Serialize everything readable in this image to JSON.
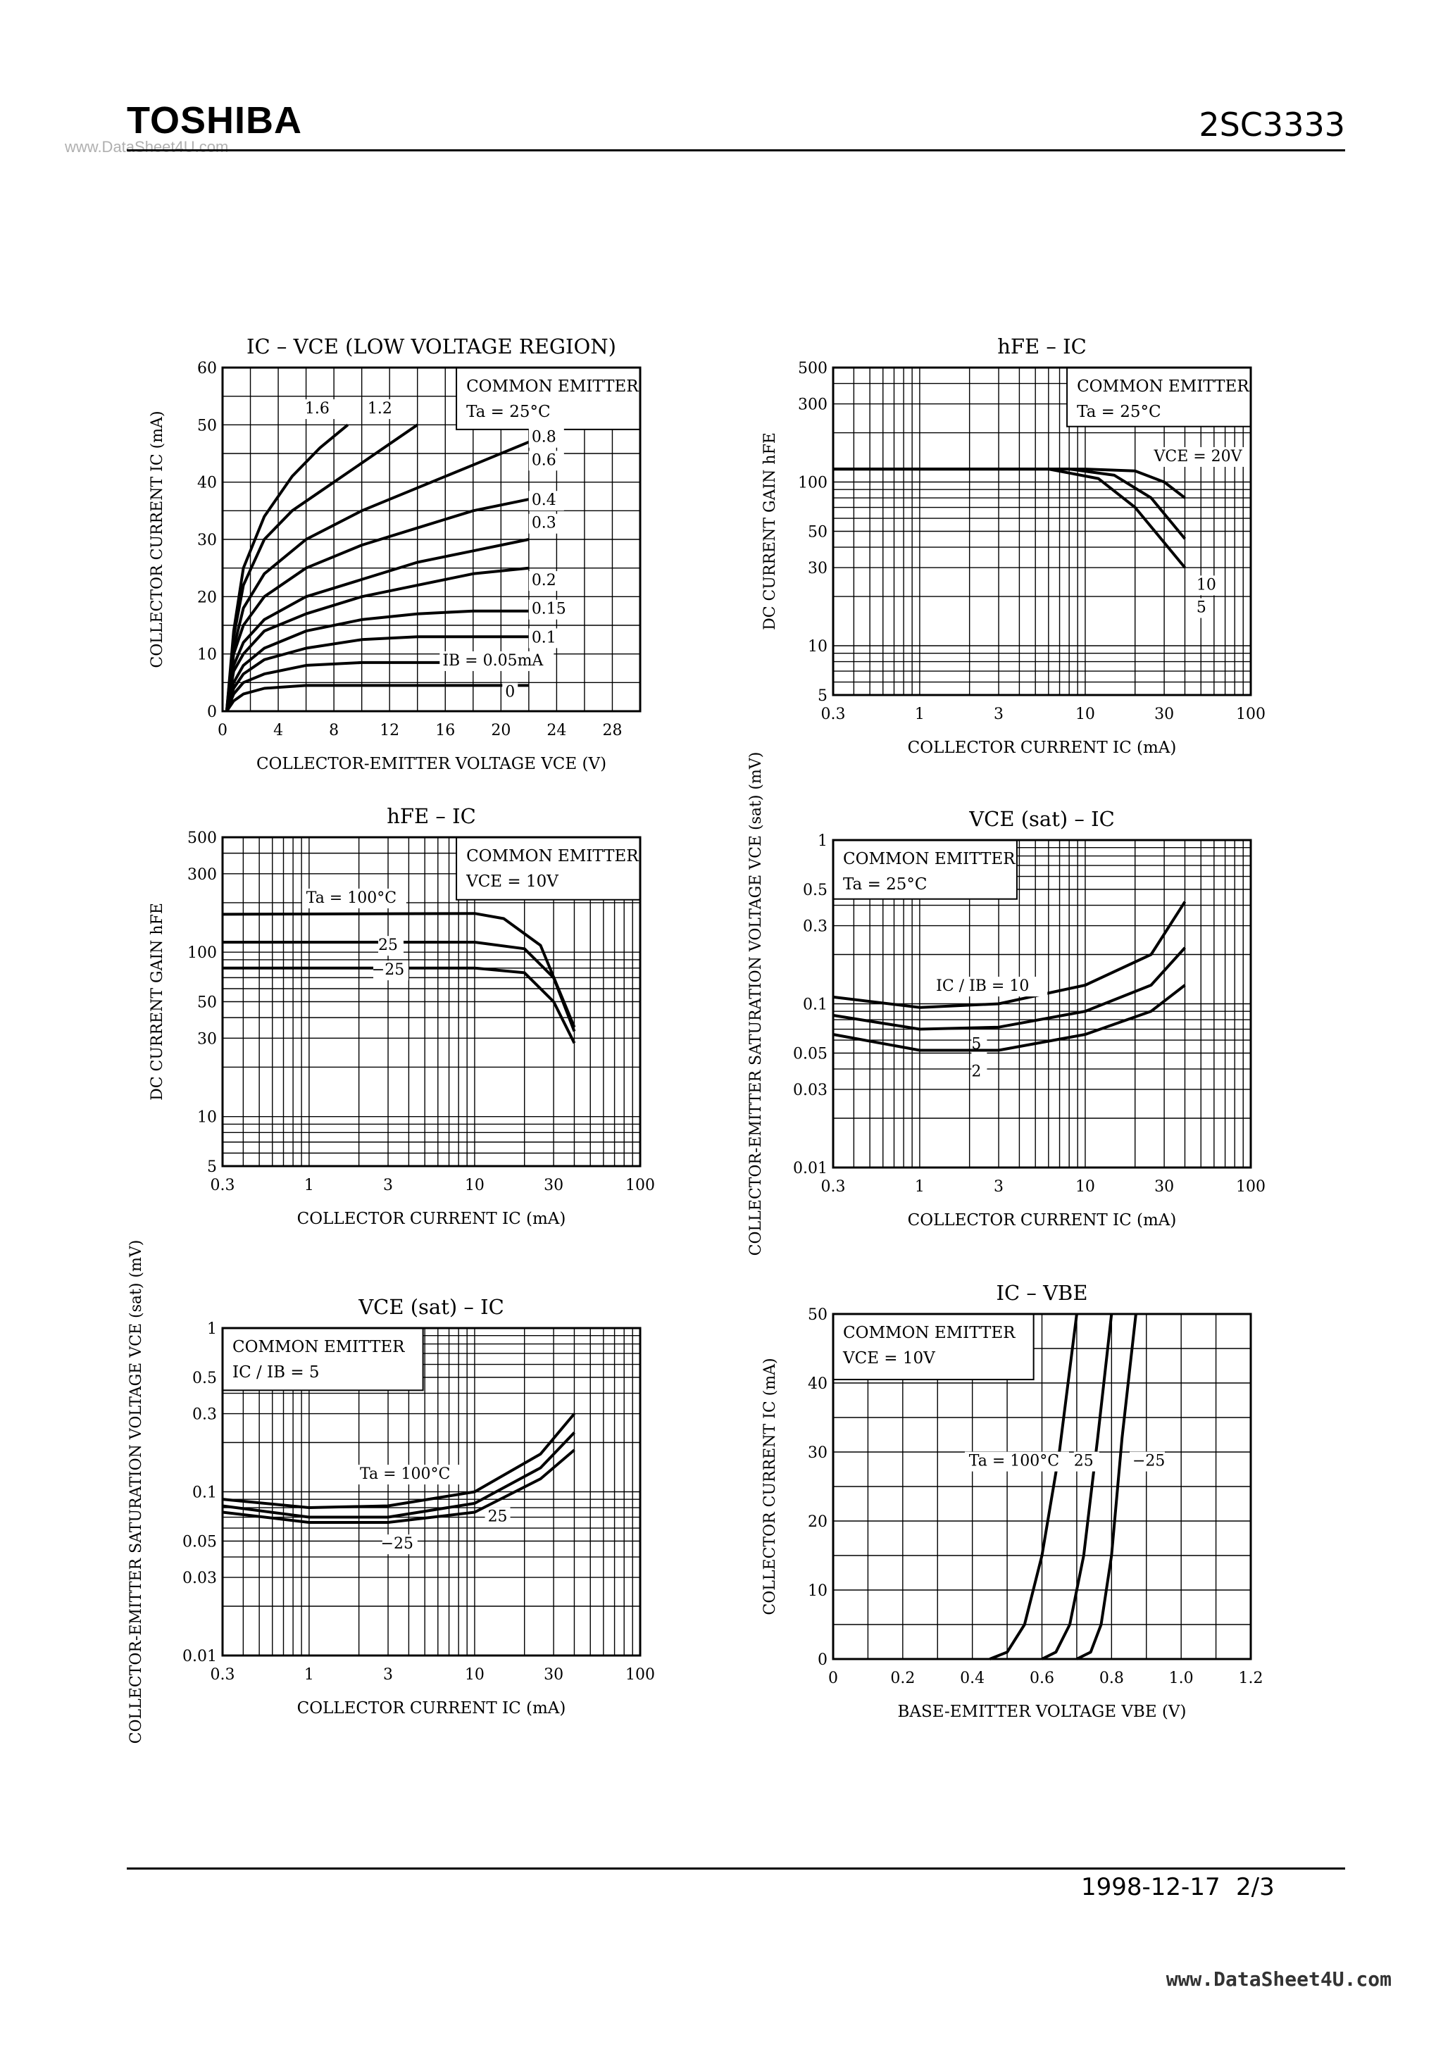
{
  "header": {
    "brand": "TOSHIBA",
    "part_number": "2SC3333",
    "watermark": "www.DataSheet4U.com"
  },
  "footer": {
    "date": "1998-12-17",
    "page": "2/3",
    "watermark": "www.DataSheet4U.com"
  },
  "chart_data": [
    {
      "type": "line",
      "title": "IC – VCE (LOW VOLTAGE REGION)",
      "xlabel": "COLLECTOR-EMITTER VOLTAGE VCE (V)",
      "ylabel": "COLLECTOR CURRENT IC (mA)",
      "xlim": [
        0,
        30
      ],
      "ylim": [
        0,
        60
      ],
      "xticks": [
        "0",
        "4",
        "8",
        "12",
        "16",
        "20",
        "24",
        "28"
      ],
      "yticks": [
        "0",
        "10",
        "20",
        "30",
        "40",
        "50",
        "60"
      ],
      "annotation": [
        "COMMON EMITTER",
        "Ta = 25°C"
      ],
      "series": [
        {
          "name": "1.6",
          "label": "1.6",
          "points": [
            [
              0.3,
              0
            ],
            [
              0.8,
              14
            ],
            [
              1.5,
              25
            ],
            [
              3,
              34
            ],
            [
              5,
              41
            ],
            [
              7,
              46
            ],
            [
              9,
              50
            ]
          ]
        },
        {
          "name": "1.2",
          "label": "1.2",
          "points": [
            [
              0.3,
              0
            ],
            [
              0.8,
              13
            ],
            [
              1.5,
              22
            ],
            [
              3,
              30
            ],
            [
              5,
              35
            ],
            [
              8,
              40
            ],
            [
              11,
              45
            ],
            [
              14,
              50
            ]
          ]
        },
        {
          "name": "0.8",
          "label": "0.8",
          "points": [
            [
              0.3,
              0
            ],
            [
              0.8,
              11
            ],
            [
              1.5,
              18
            ],
            [
              3,
              24
            ],
            [
              6,
              30
            ],
            [
              10,
              35
            ],
            [
              14,
              39
            ],
            [
              18,
              43
            ],
            [
              22,
              47
            ]
          ]
        },
        {
          "name": "0.6",
          "label": "0.6",
          "points": [
            [
              0.3,
              0
            ],
            [
              0.8,
              10
            ],
            [
              1.5,
              15
            ],
            [
              3,
              20
            ],
            [
              6,
              25
            ],
            [
              10,
              29
            ],
            [
              14,
              32
            ],
            [
              18,
              35
            ],
            [
              22,
              37
            ]
          ]
        },
        {
          "name": "0.4",
          "label": "0.4",
          "points": [
            [
              0.3,
              0
            ],
            [
              0.8,
              8
            ],
            [
              1.5,
              12
            ],
            [
              3,
              16
            ],
            [
              6,
              20
            ],
            [
              10,
              23
            ],
            [
              14,
              26
            ],
            [
              18,
              28
            ],
            [
              22,
              30
            ]
          ]
        },
        {
          "name": "0.3",
          "label": "0.3",
          "points": [
            [
              0.3,
              0
            ],
            [
              0.8,
              7
            ],
            [
              1.5,
              10
            ],
            [
              3,
              14
            ],
            [
              6,
              17
            ],
            [
              10,
              20
            ],
            [
              14,
              22
            ],
            [
              18,
              24
            ],
            [
              22,
              25
            ]
          ]
        },
        {
          "name": "0.2",
          "label": "0.2",
          "points": [
            [
              0.3,
              0
            ],
            [
              0.8,
              5
            ],
            [
              1.5,
              8
            ],
            [
              3,
              11
            ],
            [
              6,
              14
            ],
            [
              10,
              16
            ],
            [
              14,
              17
            ],
            [
              18,
              17.5
            ],
            [
              22,
              17.5
            ]
          ]
        },
        {
          "name": "0.15",
          "label": "0.15",
          "points": [
            [
              0.3,
              0
            ],
            [
              0.8,
              4
            ],
            [
              1.5,
              6.5
            ],
            [
              3,
              9
            ],
            [
              6,
              11
            ],
            [
              10,
              12.5
            ],
            [
              14,
              13
            ],
            [
              22,
              13
            ]
          ]
        },
        {
          "name": "0.1",
          "label": "0.1",
          "points": [
            [
              0.3,
              0
            ],
            [
              0.8,
              3
            ],
            [
              1.5,
              5
            ],
            [
              3,
              6.5
            ],
            [
              6,
              8
            ],
            [
              10,
              8.5
            ],
            [
              22,
              8.5
            ]
          ]
        },
        {
          "name": "0.05",
          "label": "IB = 0.05mA",
          "points": [
            [
              0.3,
              0
            ],
            [
              0.8,
              1.8
            ],
            [
              1.5,
              3
            ],
            [
              3,
              4
            ],
            [
              6,
              4.5
            ],
            [
              22,
              4.5
            ]
          ]
        },
        {
          "name": "0",
          "label": "0",
          "points": []
        }
      ]
    },
    {
      "type": "line",
      "title": "hFE – IC",
      "xlabel": "COLLECTOR CURRENT IC (mA)",
      "ylabel": "DC CURRENT GAIN hFE",
      "xscale": "log",
      "yscale": "log",
      "xlim": [
        0.3,
        100
      ],
      "ylim": [
        5,
        500
      ],
      "xticks": [
        "0.3",
        "1",
        "3",
        "10",
        "30",
        "100"
      ],
      "yticks": [
        "5",
        "10",
        "30",
        "50",
        "100",
        "300",
        "500"
      ],
      "annotation": [
        "COMMON EMITTER",
        "Ta = 25°C"
      ],
      "series": [
        {
          "name": "VCE = 20V",
          "label": "VCE = 20V",
          "points": [
            [
              0.3,
              120
            ],
            [
              10,
              120
            ],
            [
              20,
              117
            ],
            [
              30,
              100
            ],
            [
              40,
              80
            ]
          ]
        },
        {
          "name": "10",
          "label": "10",
          "points": [
            [
              0.3,
              120
            ],
            [
              8,
              120
            ],
            [
              15,
              110
            ],
            [
              25,
              80
            ],
            [
              40,
              45
            ]
          ]
        },
        {
          "name": "5",
          "label": "5",
          "points": [
            [
              0.3,
              120
            ],
            [
              6,
              120
            ],
            [
              12,
              105
            ],
            [
              20,
              70
            ],
            [
              40,
              30
            ]
          ]
        }
      ]
    },
    {
      "type": "line",
      "title": "hFE – IC",
      "xlabel": "COLLECTOR CURRENT IC (mA)",
      "ylabel": "DC CURRENT GAIN hFE",
      "xscale": "log",
      "yscale": "log",
      "xlim": [
        0.3,
        100
      ],
      "ylim": [
        5,
        500
      ],
      "xticks": [
        "0.3",
        "1",
        "3",
        "10",
        "30",
        "100"
      ],
      "yticks": [
        "5",
        "10",
        "30",
        "50",
        "100",
        "300",
        "500"
      ],
      "annotation": [
        "COMMON EMITTER",
        "VCE = 10V"
      ],
      "series": [
        {
          "name": "Ta = 100°C",
          "label": "Ta = 100°C",
          "points": [
            [
              0.3,
              170
            ],
            [
              10,
              172
            ],
            [
              15,
              160
            ],
            [
              25,
              110
            ],
            [
              40,
              35
            ]
          ]
        },
        {
          "name": "25",
          "label": "25",
          "points": [
            [
              0.3,
              115
            ],
            [
              10,
              115
            ],
            [
              20,
              105
            ],
            [
              30,
              70
            ],
            [
              40,
              33
            ]
          ]
        },
        {
          "name": "-25",
          "label": "−25",
          "points": [
            [
              0.3,
              80
            ],
            [
              10,
              80
            ],
            [
              20,
              75
            ],
            [
              30,
              50
            ],
            [
              40,
              28
            ]
          ]
        }
      ]
    },
    {
      "type": "line",
      "title": "VCE (sat) – IC",
      "xlabel": "COLLECTOR CURRENT IC (mA)",
      "ylabel": "COLLECTOR-EMITTER SATURATION VOLTAGE VCE (sat) (mV)",
      "xscale": "log",
      "yscale": "log",
      "xlim": [
        0.3,
        100
      ],
      "ylim": [
        0.01,
        1
      ],
      "xticks": [
        "0.3",
        "1",
        "3",
        "10",
        "30",
        "100"
      ],
      "yticks": [
        "0.01",
        "0.03",
        "0.05",
        "0.1",
        "0.3",
        "0.5",
        "1"
      ],
      "annotation": [
        "COMMON EMITTER",
        "Ta = 25°C"
      ],
      "series": [
        {
          "name": "IC / IB = 10",
          "label": "IC / IB = 10",
          "points": [
            [
              0.3,
              0.11
            ],
            [
              1,
              0.095
            ],
            [
              3,
              0.1
            ],
            [
              10,
              0.13
            ],
            [
              25,
              0.2
            ],
            [
              40,
              0.42
            ]
          ]
        },
        {
          "name": "5",
          "label": "5",
          "points": [
            [
              0.3,
              0.085
            ],
            [
              1,
              0.07
            ],
            [
              3,
              0.072
            ],
            [
              10,
              0.09
            ],
            [
              25,
              0.13
            ],
            [
              40,
              0.22
            ]
          ]
        },
        {
          "name": "2",
          "label": "2",
          "points": [
            [
              0.3,
              0.065
            ],
            [
              1,
              0.052
            ],
            [
              3,
              0.052
            ],
            [
              10,
              0.065
            ],
            [
              25,
              0.09
            ],
            [
              40,
              0.13
            ]
          ]
        }
      ]
    },
    {
      "type": "line",
      "title": "VCE (sat) – IC",
      "xlabel": "COLLECTOR CURRENT IC (mA)",
      "ylabel": "COLLECTOR-EMITTER SATURATION VOLTAGE VCE (sat) (mV)",
      "xscale": "log",
      "yscale": "log",
      "xlim": [
        0.3,
        100
      ],
      "ylim": [
        0.01,
        1
      ],
      "xticks": [
        "0.3",
        "1",
        "3",
        "10",
        "30",
        "100"
      ],
      "yticks": [
        "0.01",
        "0.03",
        "0.05",
        "0.1",
        "0.3",
        "0.5",
        "1"
      ],
      "annotation": [
        "COMMON EMITTER",
        "IC / IB = 5"
      ],
      "series": [
        {
          "name": "Ta = 100°C",
          "label": "Ta = 100°C",
          "points": [
            [
              0.3,
              0.09
            ],
            [
              1,
              0.08
            ],
            [
              3,
              0.082
            ],
            [
              10,
              0.1
            ],
            [
              25,
              0.17
            ],
            [
              40,
              0.3
            ]
          ]
        },
        {
          "name": "25",
          "label": "25",
          "points": [
            [
              0.3,
              0.082
            ],
            [
              1,
              0.07
            ],
            [
              3,
              0.07
            ],
            [
              10,
              0.085
            ],
            [
              25,
              0.14
            ],
            [
              40,
              0.23
            ]
          ]
        },
        {
          "name": "-25",
          "label": "−25",
          "points": [
            [
              0.3,
              0.075
            ],
            [
              1,
              0.065
            ],
            [
              3,
              0.065
            ],
            [
              10,
              0.075
            ],
            [
              25,
              0.12
            ],
            [
              40,
              0.18
            ]
          ]
        }
      ]
    },
    {
      "type": "line",
      "title": "IC – VBE",
      "xlabel": "BASE-EMITTER VOLTAGE VBE (V)",
      "ylabel": "COLLECTOR CURRENT IC (mA)",
      "xlim": [
        0,
        1.2
      ],
      "ylim": [
        0,
        50
      ],
      "xticks": [
        "0",
        "0.2",
        "0.4",
        "0.6",
        "0.8",
        "1.0",
        "1.2"
      ],
      "yticks": [
        "0",
        "10",
        "20",
        "30",
        "40",
        "50"
      ],
      "annotation": [
        "COMMON EMITTER",
        "VCE = 10V"
      ],
      "series": [
        {
          "name": "Ta = 100°C",
          "label": "Ta = 100°C",
          "points": [
            [
              0.45,
              0
            ],
            [
              0.5,
              1
            ],
            [
              0.55,
              5
            ],
            [
              0.6,
              15
            ],
            [
              0.65,
              30
            ],
            [
              0.7,
              50
            ]
          ]
        },
        {
          "name": "25",
          "label": "25",
          "points": [
            [
              0.6,
              0
            ],
            [
              0.64,
              1
            ],
            [
              0.68,
              5
            ],
            [
              0.72,
              15
            ],
            [
              0.76,
              32
            ],
            [
              0.8,
              50
            ]
          ]
        },
        {
          "name": "-25",
          "label": "−25",
          "points": [
            [
              0.7,
              0
            ],
            [
              0.74,
              1
            ],
            [
              0.77,
              5
            ],
            [
              0.8,
              15
            ],
            [
              0.83,
              32
            ],
            [
              0.87,
              50
            ]
          ]
        }
      ]
    }
  ]
}
